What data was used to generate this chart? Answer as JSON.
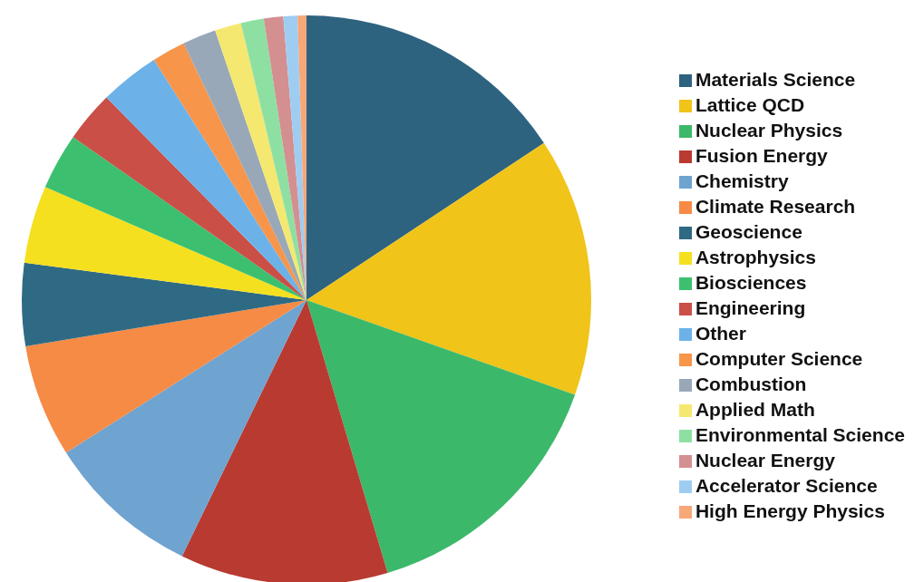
{
  "chart_data": {
    "type": "pie",
    "categories": [
      "Materials Science",
      "Lattice QCD",
      "Nuclear Physics",
      "Fusion Energy",
      "Chemistry",
      "Climate Research",
      "Geoscience",
      "Astrophysics",
      "Biosciences",
      "Engineering",
      "Other",
      "Computer Science",
      "Combustion",
      "Applied Math",
      "Environmental Science",
      "Nuclear Energy",
      "Accelerator Science",
      "High Energy Physics"
    ],
    "values": [
      15.7,
      14.7,
      15.0,
      11.8,
      8.8,
      6.4,
      4.7,
      4.4,
      3.2,
      2.9,
      3.4,
      1.9,
      1.9,
      1.5,
      1.3,
      1.1,
      0.8,
      0.5
    ],
    "colors": [
      "#2e6380",
      "#f0c419",
      "#3cb86a",
      "#b83a30",
      "#6fa3d0",
      "#f58b45",
      "#2f6a85",
      "#f5e020",
      "#3cc070",
      "#c94f47",
      "#6cb2e8",
      "#f7954a",
      "#98a8b8",
      "#f5e870",
      "#8ee0a2",
      "#d48f91",
      "#9fcdf2",
      "#f8a777"
    ],
    "legend": "right"
  }
}
